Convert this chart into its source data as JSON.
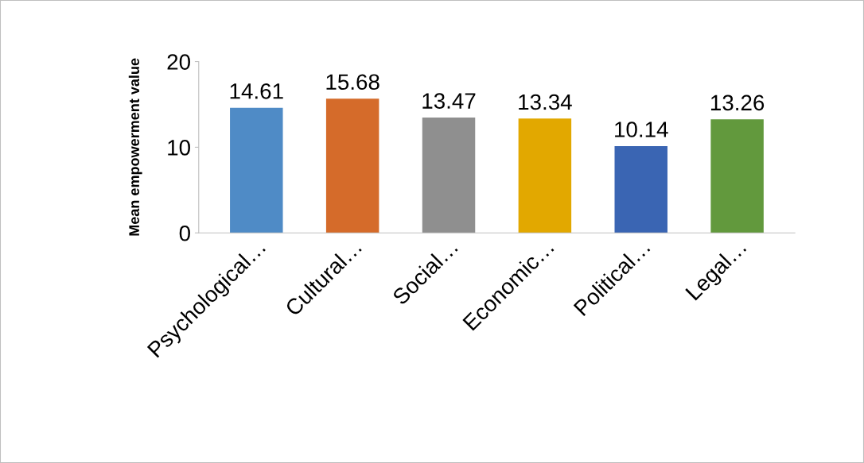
{
  "chart_data": {
    "type": "bar",
    "ylabel": "Mean empowerment value",
    "categories": [
      "Psychological…",
      "Cultural…",
      "Social…",
      "Economic…",
      "Political…",
      "Legal…"
    ],
    "values": [
      14.61,
      15.68,
      13.47,
      13.34,
      10.14,
      13.26
    ],
    "colors": [
      "#4f8bc6",
      "#d56b2a",
      "#8f8f8f",
      "#e2a800",
      "#3a65b3",
      "#62993d"
    ],
    "ylim": [
      0,
      20
    ],
    "yticks": [
      0,
      10,
      20
    ],
    "data_labels": true,
    "grid": false,
    "legend": false
  }
}
